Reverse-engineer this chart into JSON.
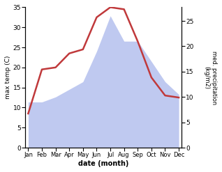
{
  "months": [
    "Jan",
    "Feb",
    "Mar",
    "Apr",
    "May",
    "Jun",
    "Jul",
    "Aug",
    "Sep",
    "Oct",
    "Nov",
    "Dec"
  ],
  "month_positions": [
    0,
    1,
    2,
    3,
    4,
    5,
    6,
    7,
    8,
    9,
    10,
    11
  ],
  "temp_data": [
    8.5,
    19.5,
    20.0,
    23.5,
    24.5,
    32.5,
    35.0,
    34.5,
    26.5,
    17.5,
    13.0,
    12.5
  ],
  "precip_data": [
    9,
    9,
    10,
    11.5,
    13,
    19,
    26,
    21,
    21,
    17,
    13,
    10.5
  ],
  "temp_color": "#c0393b",
  "precip_fill_color": "#bfc9f0",
  "ylim_temp": [
    0,
    35
  ],
  "ylim_precip": [
    0,
    27.7
  ],
  "ylabel_left": "max temp (C)",
  "ylabel_right": "med. precipitation\n(kg/m2)",
  "xlabel": "date (month)",
  "yticks_left": [
    0,
    5,
    10,
    15,
    20,
    25,
    30,
    35
  ],
  "yticks_right": [
    0,
    5,
    10,
    15,
    20,
    25
  ],
  "temp_linewidth": 1.8
}
